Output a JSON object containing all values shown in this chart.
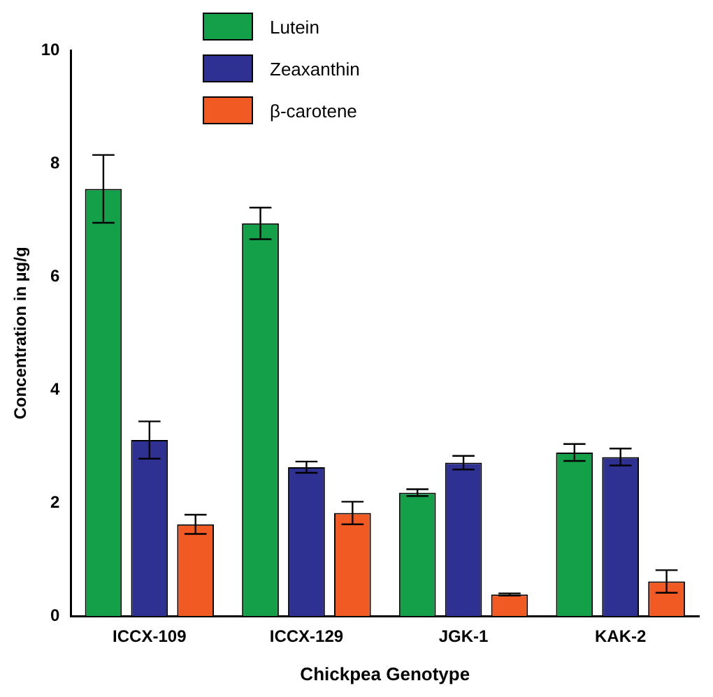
{
  "chart_data": {
    "type": "bar",
    "xlabel": "Chickpea Genotype",
    "ylabel": "Concentration in µg/g",
    "categories": [
      "ICCX-109",
      "ICCX-129",
      "JGK-1",
      "KAK-2"
    ],
    "series": [
      {
        "name": "Lutein",
        "color": "#14a049",
        "values": [
          7.55,
          6.94,
          2.18,
          2.89
        ],
        "errors": [
          0.6,
          0.28,
          0.06,
          0.15
        ]
      },
      {
        "name": "Zeaxanthin",
        "color": "#2e3192",
        "values": [
          3.11,
          2.63,
          2.71,
          2.81
        ],
        "errors": [
          0.33,
          0.1,
          0.12,
          0.15
        ]
      },
      {
        "name": "β-carotene",
        "color": "#f15a22",
        "values": [
          1.62,
          1.82,
          0.38,
          0.61
        ],
        "errors": [
          0.17,
          0.2,
          0.02,
          0.2
        ]
      }
    ],
    "ylim": [
      0,
      10
    ],
    "yticks": [
      0,
      2,
      4,
      6,
      8,
      10
    ],
    "grid": false,
    "legend": "top left"
  }
}
